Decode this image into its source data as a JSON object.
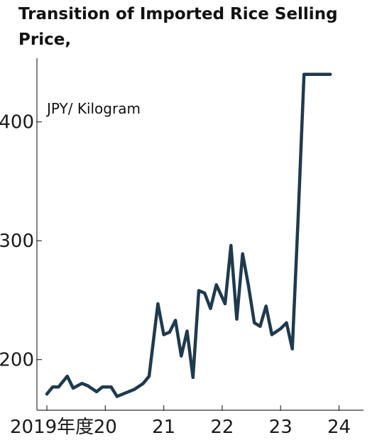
{
  "title_line1": "Transition of Imported Rice Selling",
  "title_line2": "Price,",
  "chart_data": {
    "type": "line",
    "title": "Transition of Imported Rice Selling Price,",
    "unit_label": "JPY/ Kilogram",
    "xlabel": "",
    "ylabel": "",
    "x_ticks": [
      "2019年度",
      "20",
      "21",
      "22",
      "23",
      "24"
    ],
    "y_ticks": [
      200,
      300,
      400
    ],
    "ylim": [
      158,
      450
    ],
    "grid": false,
    "legend": "none",
    "line_color": "#1f3a4c",
    "series": [
      {
        "x": [
          2019.0,
          2019.1,
          2019.2,
          2019.35,
          2019.45,
          2019.6,
          2019.7,
          2019.85,
          2019.95,
          2020.1,
          2020.2,
          2020.35,
          2020.5,
          2020.65,
          2020.75,
          2020.9,
          2021.0,
          2021.1,
          2021.2,
          2021.3,
          2021.4,
          2021.5,
          2021.6,
          2021.7,
          2021.8,
          2021.9,
          2022.05,
          2022.15,
          2022.25,
          2022.35,
          2022.45,
          2022.55,
          2022.65,
          2022.75,
          2022.85,
          2023.0,
          2023.1,
          2023.2,
          2023.3,
          2023.4,
          2023.5,
          2023.6,
          2023.7,
          2023.85
        ],
        "values": [
          171,
          177,
          177,
          186,
          176,
          180,
          178,
          173,
          177,
          177,
          169,
          172,
          175,
          180,
          186,
          247,
          221,
          223,
          233,
          203,
          224,
          185,
          258,
          256,
          243,
          263,
          247,
          296,
          234,
          289,
          262,
          231,
          228,
          245,
          221,
          226,
          231,
          209,
          319,
          440,
          440,
          440,
          440,
          440
        ]
      }
    ]
  }
}
